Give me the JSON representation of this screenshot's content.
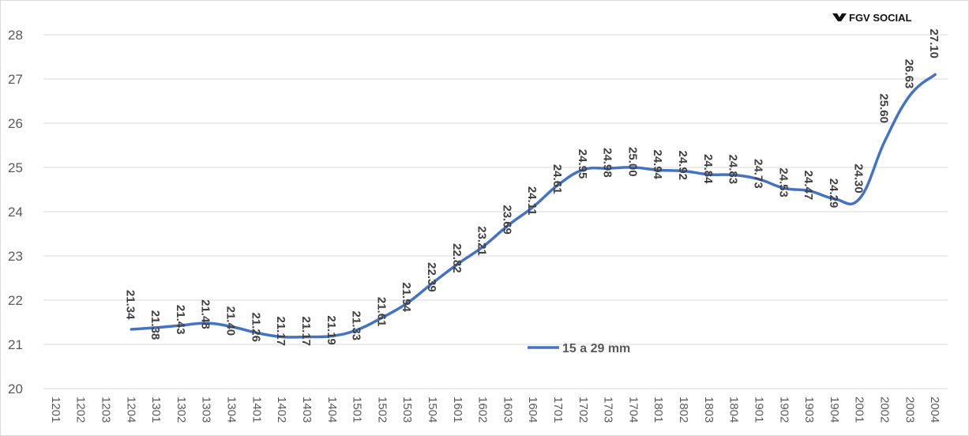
{
  "chart_data": {
    "type": "line",
    "title": "",
    "xlabel": "",
    "ylabel": "",
    "ylim": [
      20,
      28
    ],
    "yticks": [
      "20",
      "21",
      "22",
      "23",
      "24",
      "25",
      "26",
      "27",
      "28"
    ],
    "grid": "horizontal",
    "legend_position": "center",
    "categories": [
      "1201",
      "1202",
      "1203",
      "1204",
      "1301",
      "1302",
      "1303",
      "1304",
      "1401",
      "1402",
      "1403",
      "1404",
      "1501",
      "1502",
      "1503",
      "1504",
      "1601",
      "1602",
      "1603",
      "1604",
      "1701",
      "1702",
      "1703",
      "1704",
      "1801",
      "1802",
      "1803",
      "1804",
      "1901",
      "1902",
      "1903",
      "1904",
      "2001",
      "2002",
      "2003",
      "2004"
    ],
    "series": [
      {
        "name": "15 a 29 mm",
        "color": "#4472C4",
        "values": [
          null,
          null,
          null,
          21.34,
          21.38,
          21.43,
          21.48,
          21.4,
          21.26,
          21.17,
          21.17,
          21.19,
          21.33,
          21.61,
          21.94,
          22.39,
          22.82,
          23.21,
          23.69,
          24.11,
          24.61,
          24.95,
          24.98,
          25.0,
          24.94,
          24.92,
          24.84,
          24.83,
          24.73,
          24.53,
          24.47,
          24.29,
          24.3,
          25.6,
          26.63,
          27.1
        ],
        "labels": [
          "",
          "",
          "",
          "21.34",
          "21.38",
          "21.43",
          "21.48",
          "21.40",
          "21.26",
          "21.17",
          "21.17",
          "21.19",
          "21.33",
          "21.61",
          "21.94",
          "22.39",
          "22.82",
          "23.21",
          "23.69",
          "24.11",
          "24.61",
          "24.95",
          "24.98",
          "25.00",
          "24.94",
          "24.92",
          "24.84",
          "24.83",
          "24.73",
          "24.53",
          "24.47",
          "24.29",
          "24.30",
          "25.60",
          "26.63",
          "27.10"
        ]
      }
    ]
  },
  "logo": {
    "text": "FGV SOCIAL",
    "color": "#111111"
  },
  "colors": {
    "gridline": "#d9d9d9",
    "axis": "#bfbfbf",
    "border": "#d9d9d9"
  }
}
